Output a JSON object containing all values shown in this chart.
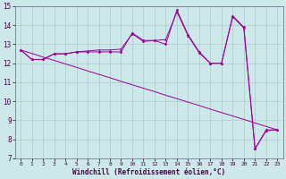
{
  "xlabel": "Windchill (Refroidissement éolien,°C)",
  "bg_color": "#cce8e8",
  "line_color": "#990099",
  "grid_color": "#aacccc",
  "hours": [
    0,
    1,
    2,
    3,
    4,
    5,
    6,
    7,
    8,
    9,
    10,
    11,
    12,
    13,
    14,
    15,
    16,
    17,
    18,
    19,
    20,
    21,
    22,
    23
  ],
  "line_zigzag": [
    12.7,
    12.2,
    12.2,
    12.5,
    12.5,
    12.6,
    12.6,
    12.6,
    12.6,
    12.6,
    13.6,
    13.2,
    13.2,
    13.0,
    14.8,
    13.5,
    12.6,
    12.0,
    12.0,
    14.5,
    13.9,
    7.5,
    8.5,
    8.5
  ],
  "line_smooth": [
    12.7,
    12.2,
    12.2,
    12.5,
    12.5,
    12.6,
    12.65,
    12.7,
    12.7,
    12.75,
    13.55,
    13.15,
    13.2,
    13.25,
    14.7,
    13.45,
    12.55,
    12.0,
    12.0,
    14.45,
    13.85,
    7.5,
    8.45,
    8.5
  ],
  "line_straight": [
    12.7,
    12.52,
    12.33,
    12.15,
    11.97,
    11.79,
    11.6,
    11.42,
    11.24,
    11.05,
    10.87,
    10.69,
    10.51,
    10.32,
    10.14,
    9.96,
    9.78,
    9.59,
    9.41,
    9.23,
    9.05,
    8.86,
    8.68,
    8.5
  ],
  "ylim": [
    7,
    15
  ],
  "yticks": [
    7,
    8,
    9,
    10,
    11,
    12,
    13,
    14,
    15
  ],
  "xlim": [
    -0.5,
    23.5
  ]
}
